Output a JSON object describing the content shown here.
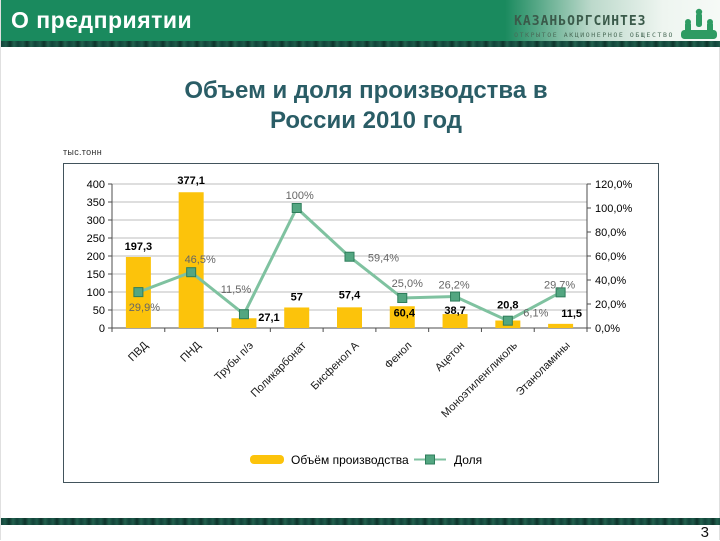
{
  "header": {
    "title": "О предприятии"
  },
  "logo": {
    "name": "КАЗАНЬОРГСИНТЕЗ",
    "subtitle": "ОТКРЫТОЕ АКЦИОНЕРНОЕ ОБЩЕСТВО",
    "icon": "plant-towers-icon",
    "icon_color": "#2E9B63"
  },
  "footer": {
    "page_number": "3"
  },
  "chart_data": {
    "type": "bar",
    "subtype": "combo-bar-line",
    "title_lines": [
      "Объем и доля производства в",
      "России 2010 год"
    ],
    "units_label": "тыс.тонн",
    "categories": [
      "ПВД",
      "ПНД",
      "Трубы п/э",
      "Поликарбонат",
      "Бисфенол А",
      "Фенол",
      "Ацетон",
      "Моноэтиленгликоль",
      "Этаноламины"
    ],
    "series": [
      {
        "name": "Объём производства",
        "type": "bar",
        "color": "#FCC30B",
        "values": [
          197.3,
          377.1,
          27.1,
          57,
          57.4,
          60.4,
          38.7,
          20.8,
          11.5
        ],
        "labels": [
          "197,3",
          "377,1",
          "27,1",
          "57",
          "57,4",
          "60,4",
          "38,7",
          "20,8",
          "11,5"
        ],
        "label_offsets": [
          [
            0,
            -11
          ],
          [
            0,
            -12
          ],
          [
            25,
            -1
          ],
          [
            0,
            -11
          ],
          [
            0,
            -13
          ],
          [
            2,
            6
          ],
          [
            0,
            -4
          ],
          [
            0,
            -16
          ],
          [
            11,
            -11
          ]
        ]
      },
      {
        "name": "Доля",
        "type": "line",
        "color": "#7FC2A0",
        "marker_color": "#53A681",
        "marker_border": "#2E7D5B",
        "values": [
          29.9,
          46.5,
          11.5,
          100,
          59.4,
          25.0,
          26.2,
          6.1,
          29.7
        ],
        "labels": [
          "29,9%",
          "46,5%",
          "11,5%",
          "100%",
          "59,4%",
          "25,0%",
          "26,2%",
          "6,1%",
          "29,7%"
        ],
        "label_offsets": [
          [
            6,
            15
          ],
          [
            9,
            -13
          ],
          [
            -8,
            -25
          ],
          [
            3,
            -13
          ],
          [
            34,
            1
          ],
          [
            5,
            -15
          ],
          [
            -1,
            -12
          ],
          [
            28,
            -8
          ],
          [
            -1,
            -8
          ]
        ]
      }
    ],
    "left_axis": {
      "min": 0,
      "max": 400,
      "ticks": [
        "400",
        "350",
        "300",
        "250",
        "200",
        "150",
        "100",
        "50",
        "0"
      ]
    },
    "right_axis": {
      "min": 0,
      "max": 120,
      "ticks": [
        "120,0%",
        "100,0%",
        "80,0%",
        "60,0%",
        "40,0%",
        "20,0%",
        "0,0%"
      ]
    },
    "grid": true,
    "gridline_color": "#BDBDBD",
    "axis_color": "#4D4D4D",
    "bar_label_color": "#000000",
    "line_label_color": "#666666",
    "legend_position": "bottom"
  }
}
